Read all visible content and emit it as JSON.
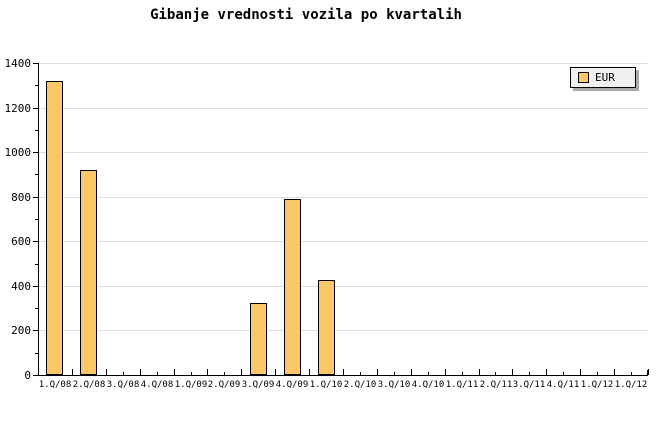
{
  "title": "Gibanje vrednosti vozila po kvartalih",
  "legend": {
    "label": "EUR"
  },
  "colors": {
    "bar_fill": "#FCC867",
    "bar_border": "#000000",
    "grid": "#DDDDDD",
    "axis": "#000000",
    "legend_bg": "#F0F0F0",
    "legend_shadow": "#AAAAAA",
    "background": "#FFFFFF"
  },
  "chart_data": {
    "type": "bar",
    "title": "Gibanje vrednosti vozila po kvartalih",
    "categories": [
      "1.Q/08",
      "2.Q/08",
      "3.Q/08",
      "4.Q/08",
      "1.Q/09",
      "2.Q/09",
      "3.Q/09",
      "4.Q/09",
      "1.Q/10",
      "2.Q/10",
      "3.Q/10",
      "4.Q/10",
      "1.Q/11",
      "2.Q/11",
      "3.Q/11",
      "4.Q/11",
      "1.Q/12",
      "1.Q/12"
    ],
    "series": [
      {
        "name": "EUR",
        "values": [
          1320,
          920,
          0,
          0,
          0,
          0,
          325,
          790,
          425,
          0,
          0,
          0,
          0,
          0,
          0,
          0,
          0,
          0
        ]
      }
    ],
    "xlabel": "",
    "ylabel": "",
    "ylim": [
      0,
      1400
    ],
    "ytick_step": 200,
    "yminor_step": 100,
    "ytick_labels": [
      "0",
      "200",
      "400",
      "600",
      "800",
      "1000",
      "1200",
      "1400"
    ],
    "grid": true,
    "legend_position": "top-right"
  }
}
